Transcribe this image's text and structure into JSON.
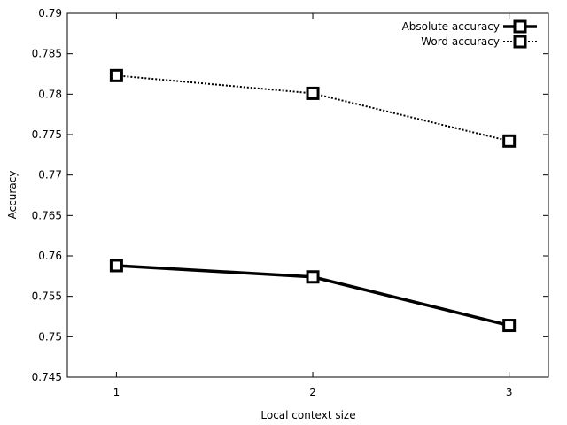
{
  "chart_data": {
    "type": "line",
    "xlabel": "Local context size",
    "ylabel": "Accuracy",
    "x": [
      1,
      2,
      3
    ],
    "x_ticks": [
      "1",
      "2",
      "3"
    ],
    "xlim": [
      0.75,
      3.2
    ],
    "ylim": [
      0.745,
      0.79
    ],
    "y_ticks": [
      "0.745",
      "0.75",
      "0.755",
      "0.76",
      "0.765",
      "0.77",
      "0.775",
      "0.78",
      "0.785",
      "0.79"
    ],
    "grid": false,
    "legend_position": "top-right",
    "series": [
      {
        "name": "Absolute accuracy",
        "values": [
          0.7588,
          0.7574,
          0.7514
        ],
        "line_style": "solid",
        "marker": "open-square",
        "color": "#000000"
      },
      {
        "name": "Word accuracy",
        "values": [
          0.7823,
          0.7801,
          0.7742
        ],
        "line_style": "dotted",
        "marker": "open-square",
        "color": "#000000"
      }
    ]
  }
}
